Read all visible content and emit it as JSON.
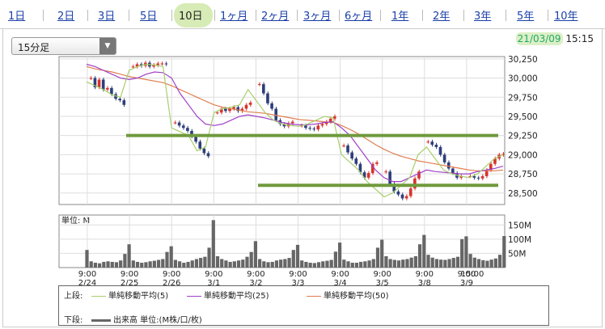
{
  "tabs": [
    "1日",
    "2日",
    "3日",
    "5日",
    "10日",
    "1ヶ月",
    "2ヶ月",
    "3ヶ月",
    "6ヶ月",
    "1年",
    "2年",
    "3年",
    "5年",
    "10年"
  ],
  "active_tab": "10日",
  "interval_select": {
    "value": "15分足"
  },
  "datetime": {
    "date": "21/03/09",
    "time": "15:15"
  },
  "volume_unit_label": "単位: M",
  "legend": {
    "upper_label": "上段:",
    "lower_label": "下段:",
    "ma5": "単純移動平均(5)",
    "ma25": "単純移動平均(25)",
    "ma50": "単純移動平均(50)",
    "volume": "出来高 単位:(M株/口/枚)"
  },
  "colors": {
    "up": "#d6332c",
    "down": "#2d3e7a",
    "ma5": "#a8cf6c",
    "ma25": "#a040c8",
    "ma50": "#e07d4e",
    "annotation": "#6f9a3c",
    "volume": "#666666"
  },
  "chart_data": {
    "type": "candlestick",
    "price_ticks": [
      30250,
      30000,
      29750,
      29500,
      29250,
      29000,
      28750,
      28500
    ],
    "price_ylim": [
      28350,
      30280
    ],
    "volume_ticks": [
      "150M",
      "100M",
      "50M"
    ],
    "volume_ylim": [
      0,
      185
    ],
    "x_ticks": [
      {
        "time": "9:00",
        "date": "2/24"
      },
      {
        "time": "9:00",
        "date": "2/25"
      },
      {
        "time": "9:00",
        "date": "2/26"
      },
      {
        "time": "9:00",
        "date": "3/1"
      },
      {
        "time": "9:00",
        "date": "3/2"
      },
      {
        "time": "9:00",
        "date": "3/3"
      },
      {
        "time": "9:00",
        "date": "3/4"
      },
      {
        "time": "9:00",
        "date": "3/5"
      },
      {
        "time": "9:00",
        "date": "3/8"
      },
      {
        "time": "9:00",
        "date": "3/9"
      },
      {
        "time": "15:00",
        "date": ""
      }
    ],
    "sessions": [
      [
        30000,
        29880,
        29980,
        29850,
        29870,
        29790,
        29730,
        29710,
        29650
      ],
      [
        30150,
        30180,
        30160,
        30200,
        30150,
        30170,
        30190,
        30190,
        30180
      ],
      [
        29420,
        29380,
        29350,
        29310,
        29240,
        29170,
        29080,
        29020,
        28980
      ],
      [
        29550,
        29600,
        29570,
        29600,
        29620,
        29570,
        29600,
        29650,
        29680
      ],
      [
        29920,
        29800,
        29670,
        29600,
        29450,
        29400,
        29370,
        29410,
        29430
      ],
      [
        29380,
        29350,
        29340,
        29330,
        29380,
        29400,
        29430,
        29470,
        29500
      ],
      [
        29120,
        29030,
        28950,
        28880,
        28770,
        28700,
        28760,
        28880,
        28900
      ],
      [
        28780,
        28620,
        28520,
        28480,
        28430,
        28460,
        28560,
        28690,
        28780
      ],
      [
        29170,
        29130,
        29100,
        29000,
        28900,
        28820,
        28760,
        28700,
        28720
      ],
      [
        28720,
        28700,
        28690,
        28720,
        28800,
        28880,
        28950,
        29000,
        29010
      ]
    ],
    "ma5": [
      29950,
      29900,
      29850,
      29780,
      29750,
      30100,
      30150,
      30180,
      30170,
      30150,
      29350,
      29300,
      29250,
      29050,
      29100,
      29550,
      29600,
      29620,
      29650,
      29850,
      29700,
      29550,
      29450,
      29400,
      29380,
      29370,
      29400,
      29450,
      29500,
      29480,
      29000,
      28900,
      28800,
      28650,
      28550,
      28450,
      28500,
      28600,
      28700,
      29000,
      29100,
      28950,
      28800,
      28750,
      28720,
      28700,
      28750,
      28850,
      28950,
      29000
    ],
    "ma25": [
      30180,
      30150,
      30100,
      30050,
      30000,
      29980,
      30000,
      30050,
      30080,
      30070,
      30000,
      29800,
      29650,
      29500,
      29400,
      29380,
      29400,
      29450,
      29500,
      29520,
      29500,
      29480,
      29450,
      29420,
      29400,
      29390,
      29390,
      29400,
      29420,
      29430,
      29350,
      29250,
      29100,
      28950,
      28800,
      28700,
      28650,
      28650,
      28700,
      28750,
      28800,
      28780,
      28770,
      28760,
      28750,
      28750,
      28780,
      28800,
      28820,
      28850
    ],
    "ma50": [
      30150,
      30120,
      30100,
      30080,
      30050,
      30020,
      30000,
      29980,
      29960,
      29940,
      29900,
      29850,
      29800,
      29750,
      29700,
      29650,
      29620,
      29600,
      29580,
      29560,
      29550,
      29540,
      29520,
      29500,
      29480,
      29460,
      29450,
      29440,
      29430,
      29420,
      29380,
      29330,
      29270,
      29200,
      29130,
      29070,
      29020,
      28980,
      28950,
      28920,
      28900,
      28880,
      28860,
      28840,
      28820,
      28800,
      28790,
      28790,
      28790,
      28800
    ],
    "support_lines": [
      29250,
      28600
    ],
    "volumes": [
      [
        62,
        22,
        17,
        15,
        20,
        22,
        20,
        19,
        25,
        48
      ],
      [
        82,
        25,
        20,
        17,
        19,
        22,
        24,
        27,
        30,
        55
      ],
      [
        75,
        27,
        22,
        17,
        20,
        25,
        30,
        34,
        38,
        70
      ],
      [
        167,
        40,
        30,
        25,
        20,
        22,
        25,
        28,
        38,
        55
      ],
      [
        93,
        30,
        22,
        19,
        20,
        25,
        28,
        30,
        34,
        62
      ],
      [
        80,
        25,
        20,
        17,
        16,
        19,
        22,
        24,
        27,
        56
      ],
      [
        88,
        28,
        22,
        17,
        17,
        20,
        22,
        25,
        30,
        70
      ],
      [
        98,
        40,
        30,
        27,
        25,
        28,
        30,
        35,
        40,
        82
      ],
      [
        115,
        45,
        35,
        30,
        28,
        27,
        30,
        34,
        38,
        100
      ],
      [
        110,
        48,
        35,
        30,
        26,
        24,
        28,
        32,
        45,
        111
      ]
    ]
  }
}
